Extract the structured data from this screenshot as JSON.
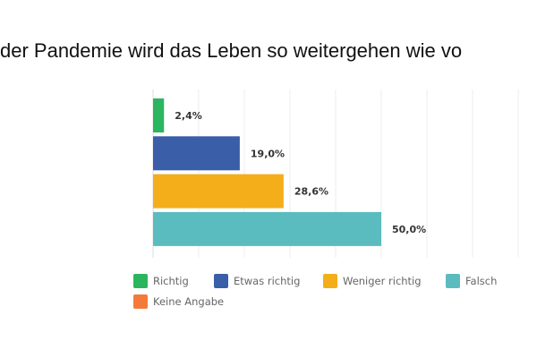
{
  "chart_data": {
    "type": "bar",
    "orientation": "horizontal",
    "title": "der Pandemie wird das Leben so weitergehen wie vo",
    "categories": [
      "Richtig",
      "Etwas richtig",
      "Weniger richtig",
      "Falsch"
    ],
    "values": [
      2.4,
      19.0,
      28.6,
      50.0
    ],
    "data_labels": [
      "2,4%",
      "19,0%",
      "28,6%",
      "50,0%"
    ],
    "colors": [
      "#2bb55e",
      "#3a5ea8",
      "#f4ae1a",
      "#5bbcbf"
    ],
    "xlim": [
      0,
      80
    ],
    "grid_step": 10,
    "grid": true,
    "legend_position": "bottom",
    "legend": [
      {
        "label": "Richtig",
        "color": "#2bb55e"
      },
      {
        "label": "Etwas richtig",
        "color": "#3a5ea8"
      },
      {
        "label": "Weniger richtig",
        "color": "#f4ae1a"
      },
      {
        "label": "Falsch",
        "color": "#5bbcbf"
      },
      {
        "label": "Keine Angabe",
        "color": "#f47a3c"
      }
    ]
  }
}
